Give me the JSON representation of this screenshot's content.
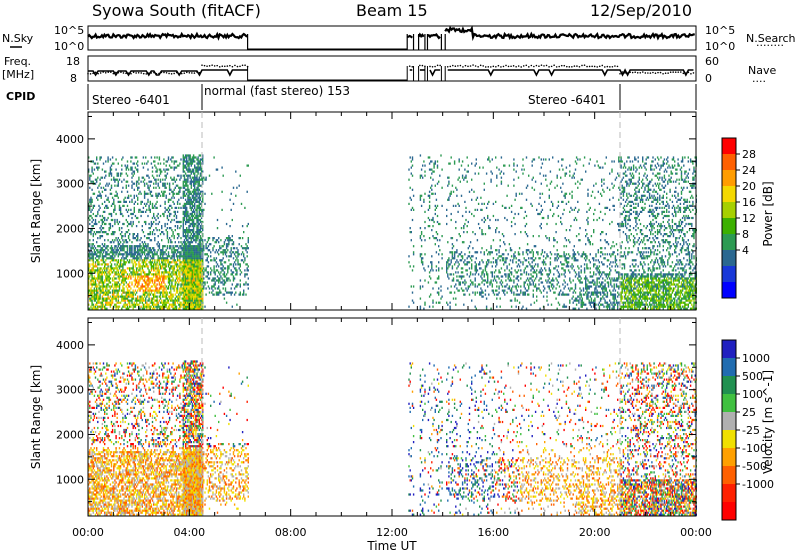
{
  "header": {
    "station": "Syowa South (fitACF)",
    "beam": "Beam 15",
    "date": "12/Sep/2010"
  },
  "labels": {
    "nsky": "N.Sky",
    "nsearch": "N.Search",
    "nsearch_dots": "........",
    "freq": "Freq.",
    "freq_unit": "[MHz]",
    "nave": "Nave",
    "nave_dots": "....",
    "cpid": "CPID"
  },
  "noise_axis": {
    "left_ticks": [
      "10^5",
      "10^0"
    ],
    "right_ticks": [
      "10^5",
      "10^0"
    ]
  },
  "freq_axis": {
    "left_ticks": [
      "18",
      "8"
    ],
    "right_ticks": [
      "60",
      "0"
    ]
  },
  "cpid_blocks": [
    {
      "label": "Stereo -6401",
      "start_h": 0,
      "end_h": 4.5
    },
    {
      "label": "normal (fast stereo) 153",
      "start_h": 4.5,
      "end_h": 21.0
    },
    {
      "label": "Stereo -6401",
      "start_h": 21.0,
      "end_h": 24
    }
  ],
  "colorbars": {
    "power": {
      "label": "Power [dB]",
      "ticks": [
        "28",
        "24",
        "20",
        "16",
        "12",
        "8",
        "4"
      ],
      "colors": [
        "#ff0000",
        "#ff6000",
        "#ff9c00",
        "#f4d800",
        "#a6d000",
        "#3cb000",
        "#2c9a52",
        "#2a6890",
        "#1838d8",
        "#0000ff"
      ]
    },
    "velocity": {
      "label": "Velocity [m s^-1]",
      "ticks": [
        "1000",
        "500",
        "100",
        "25",
        "-25",
        "-100",
        "-500",
        "-1000"
      ],
      "colors": [
        "#2020c0",
        "#206cb0",
        "#209050",
        "#40c040",
        "#b0b0b0",
        "#f0e000",
        "#ffa000",
        "#ff6000",
        "#ff2000",
        "#ff0000"
      ]
    }
  },
  "chart_data": {
    "type": "heatmap",
    "x_axis": {
      "label": "Time UT",
      "ticks": [
        "00:00",
        "04:00",
        "08:00",
        "12:00",
        "16:00",
        "20:00",
        "00:00"
      ],
      "range_h": [
        0,
        24
      ]
    },
    "y_axis": {
      "label": "Slant Range [km]",
      "ticks": [
        "1000",
        "2000",
        "3000",
        "4000"
      ],
      "range_km": [
        180,
        4600
      ]
    },
    "panels": [
      {
        "name": "Power",
        "units": "dB",
        "range": [
          0,
          30
        ]
      },
      {
        "name": "Velocity",
        "units": "m/s",
        "range": [
          -1000,
          1000
        ]
      }
    ],
    "noise_sky_level": "~10^3",
    "frequency_mhz": "~11-12",
    "mode_change_times_h": [
      4.5,
      21.0
    ],
    "data_gaps_h": [
      [
        6.3,
        12.6
      ],
      [
        14.9,
        14.95
      ]
    ]
  }
}
